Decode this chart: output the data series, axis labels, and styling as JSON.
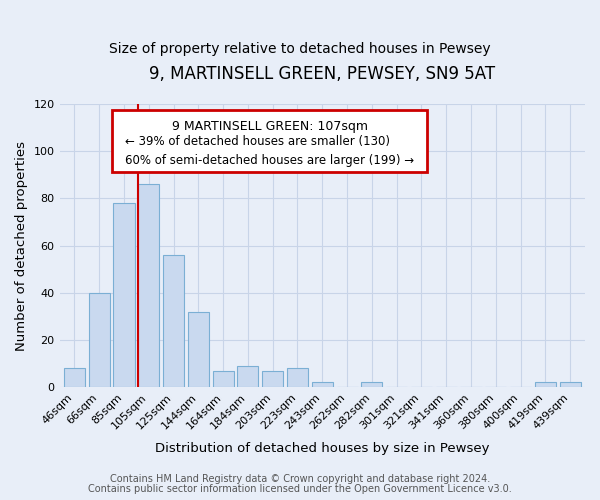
{
  "title": "9, MARTINSELL GREEN, PEWSEY, SN9 5AT",
  "subtitle": "Size of property relative to detached houses in Pewsey",
  "xlabel": "Distribution of detached houses by size in Pewsey",
  "ylabel": "Number of detached properties",
  "bar_labels": [
    "46sqm",
    "66sqm",
    "85sqm",
    "105sqm",
    "125sqm",
    "144sqm",
    "164sqm",
    "184sqm",
    "203sqm",
    "223sqm",
    "243sqm",
    "262sqm",
    "282sqm",
    "301sqm",
    "321sqm",
    "341sqm",
    "360sqm",
    "380sqm",
    "400sqm",
    "419sqm",
    "439sqm"
  ],
  "bar_values": [
    8,
    40,
    78,
    86,
    56,
    32,
    7,
    9,
    7,
    8,
    2,
    0,
    2,
    0,
    0,
    0,
    0,
    0,
    0,
    2,
    2
  ],
  "bar_color": "#c9d9ef",
  "bar_edge_color": "#7bafd4",
  "marker_bar_index": 3,
  "ylim": [
    0,
    120
  ],
  "yticks": [
    0,
    20,
    40,
    60,
    80,
    100,
    120
  ],
  "annotation_title": "9 MARTINSELL GREEN: 107sqm",
  "annotation_line1": "← 39% of detached houses are smaller (130)",
  "annotation_line2": "60% of semi-detached houses are larger (199) →",
  "annotation_box_facecolor": "#ffffff",
  "annotation_box_edgecolor": "#cc0000",
  "marker_line_color": "#cc0000",
  "footer_line1": "Contains HM Land Registry data © Crown copyright and database right 2024.",
  "footer_line2": "Contains public sector information licensed under the Open Government Licence v3.0.",
  "background_color": "#e8eef8",
  "plot_background_color": "#e8eef8",
  "grid_color": "#c8d4e8",
  "title_fontsize": 12,
  "subtitle_fontsize": 10,
  "axis_label_fontsize": 9.5,
  "tick_fontsize": 8,
  "footer_fontsize": 7,
  "annotation_title_fontsize": 9,
  "annotation_text_fontsize": 8.5
}
